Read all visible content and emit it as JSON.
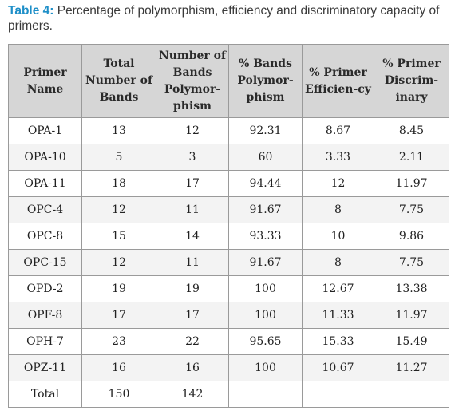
{
  "caption": {
    "label": "Table 4:",
    "text": " Percentage of polymorphism, efficiency and discriminatory capacity of primers."
  },
  "table": {
    "headers": [
      "Primer Name",
      "Total Number of Bands",
      "Number of Bands Polymor-phism",
      "% Bands Polymor-phism",
      "% Primer Efficien-cy",
      "% Primer Discrim-inary"
    ],
    "rows": [
      [
        "OPA-1",
        "13",
        "12",
        "92.31",
        "8.67",
        "8.45"
      ],
      [
        "OPA-10",
        "5",
        "3",
        "60",
        "3.33",
        "2.11"
      ],
      [
        "OPA-11",
        "18",
        "17",
        "94.44",
        "12",
        "11.97"
      ],
      [
        "OPC-4",
        "12",
        "11",
        "91.67",
        "8",
        "7.75"
      ],
      [
        "OPC-8",
        "15",
        "14",
        "93.33",
        "10",
        "9.86"
      ],
      [
        "OPC-15",
        "12",
        "11",
        "91.67",
        "8",
        "7.75"
      ],
      [
        "OPD-2",
        "19",
        "19",
        "100",
        "12.67",
        "13.38"
      ],
      [
        "OPF-8",
        "17",
        "17",
        "100",
        "11.33",
        "11.97"
      ],
      [
        "OPH-7",
        "23",
        "22",
        "95.65",
        "15.33",
        "15.49"
      ],
      [
        "OPZ-11",
        "16",
        "16",
        "100",
        "10.67",
        "11.27"
      ],
      [
        "Total",
        "150",
        "142",
        "",
        "",
        ""
      ]
    ]
  }
}
